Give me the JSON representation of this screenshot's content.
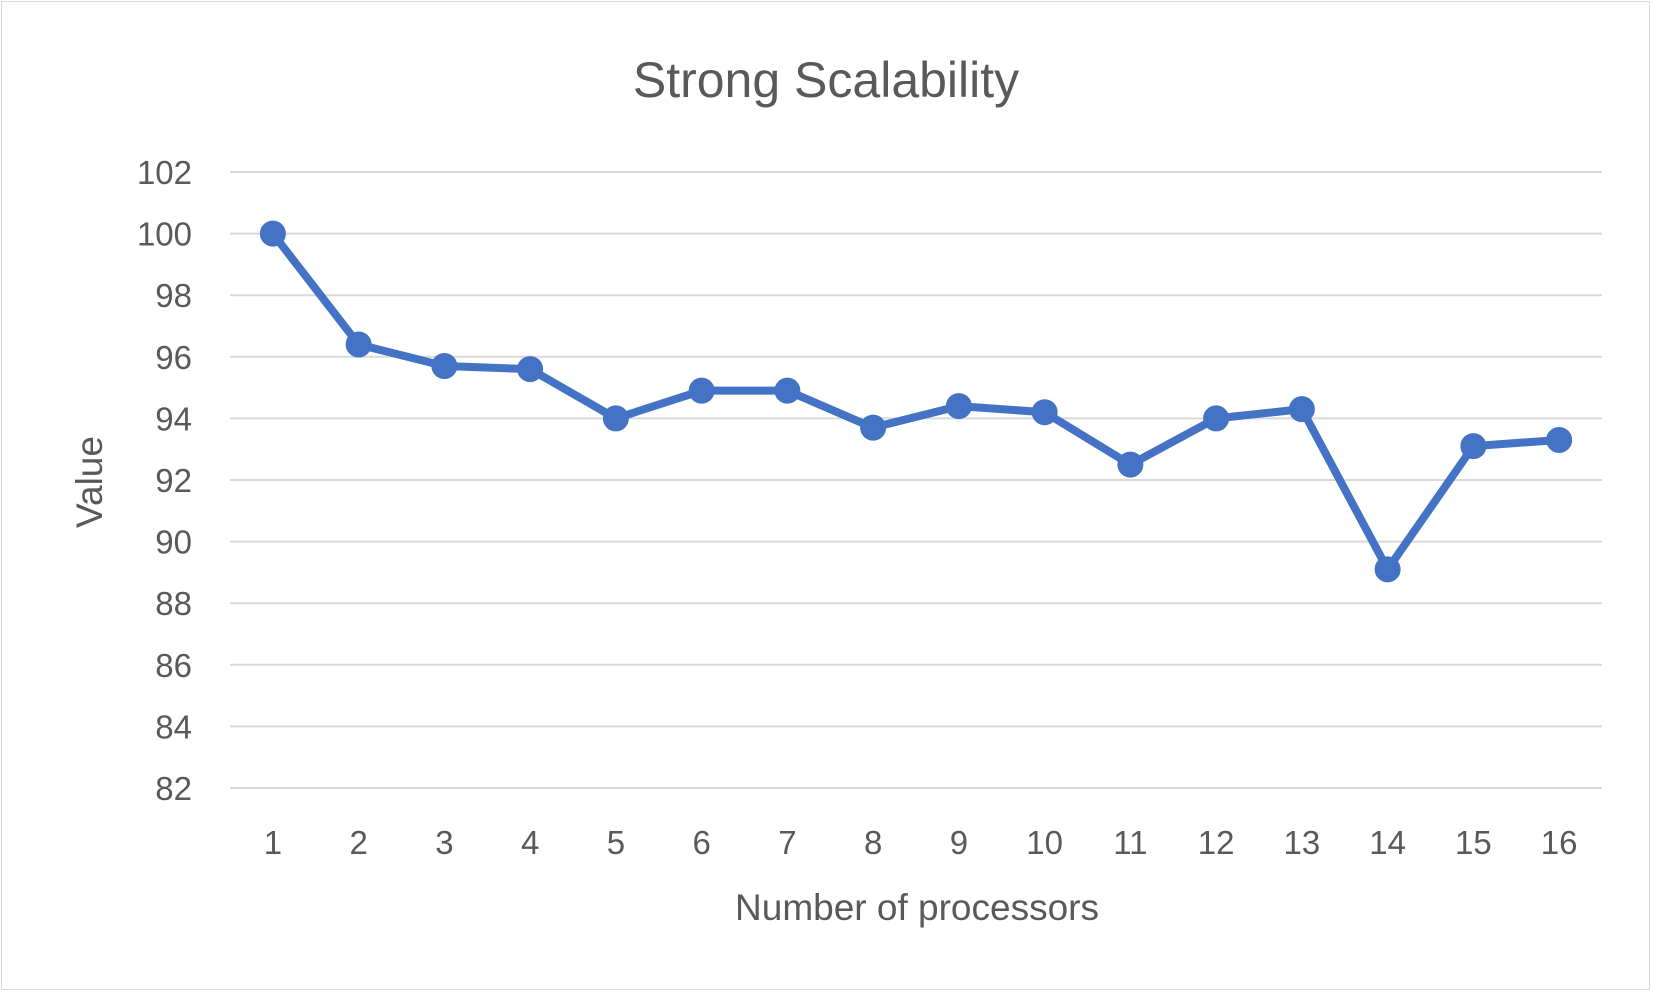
{
  "chart_data": {
    "type": "line",
    "title": "Strong Scalability",
    "xlabel": "Number of processors",
    "ylabel": "Value",
    "categories": [
      "1",
      "2",
      "3",
      "4",
      "5",
      "6",
      "7",
      "8",
      "9",
      "10",
      "11",
      "12",
      "13",
      "14",
      "15",
      "16"
    ],
    "series": [
      {
        "values": [
          100.0,
          96.4,
          95.7,
          95.6,
          94.0,
          94.9,
          94.9,
          93.7,
          94.4,
          94.2,
          92.5,
          94.0,
          94.3,
          89.1,
          93.1,
          93.3
        ]
      }
    ],
    "ylim": [
      82,
      102
    ],
    "yticks": [
      82,
      84,
      86,
      88,
      90,
      92,
      94,
      96,
      98,
      100,
      102
    ],
    "grid": true,
    "legend": "none",
    "colors": {
      "series": "#4472c4",
      "grid": "#d9d9d9",
      "text": "#595959"
    }
  }
}
